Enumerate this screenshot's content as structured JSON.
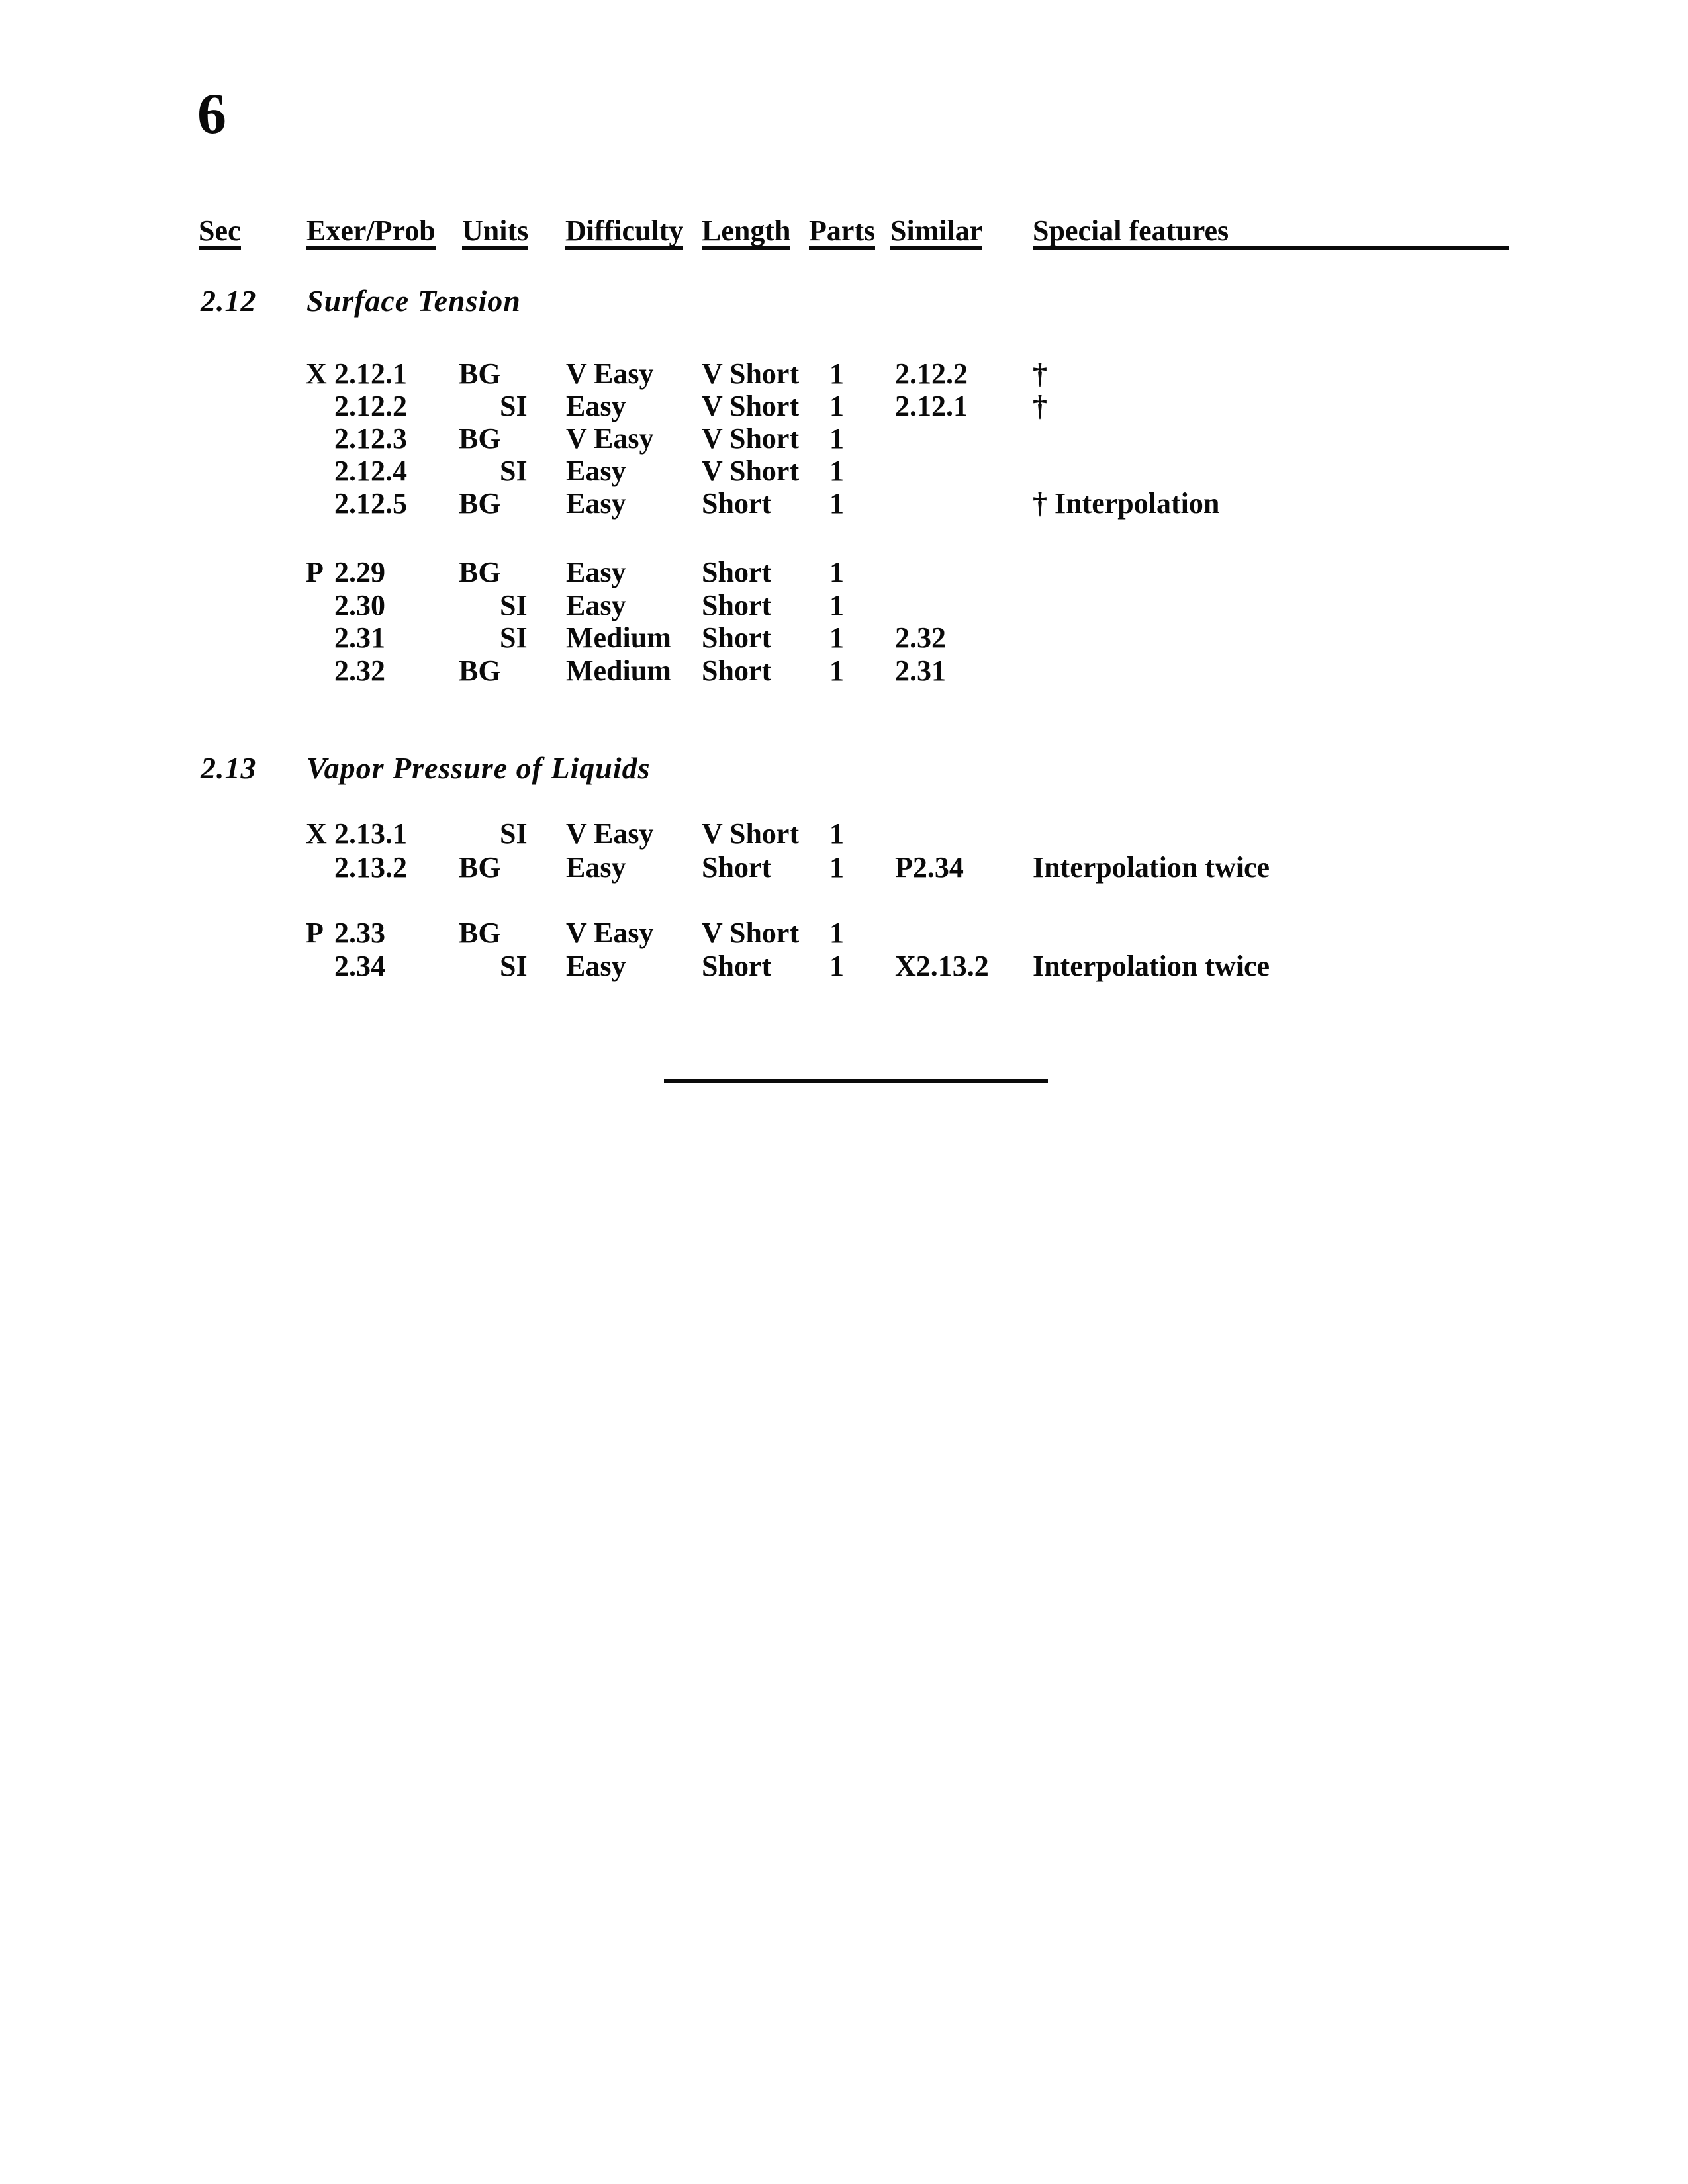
{
  "page": {
    "number": "6"
  },
  "table": {
    "columns": [
      {
        "key": "sec",
        "label": "Sec"
      },
      {
        "key": "exer",
        "label": "Exer/Prob"
      },
      {
        "key": "units",
        "label": "Units"
      },
      {
        "key": "difficulty",
        "label": "Difficulty"
      },
      {
        "key": "length",
        "label": "Length"
      },
      {
        "key": "parts",
        "label": "Parts"
      },
      {
        "key": "similar",
        "label": "Similar"
      },
      {
        "key": "special",
        "label": "Special features"
      }
    ],
    "sections": [
      {
        "id": "2.12",
        "title": "Surface Tension",
        "groups": [
          {
            "rows": [
              {
                "prefix": "X",
                "exer": "2.12.1",
                "units": "BG",
                "difficulty": "V Easy",
                "length": "V Short",
                "parts": "1",
                "similar": "2.12.2",
                "special": "†"
              },
              {
                "prefix": "",
                "exer": "2.12.2",
                "units": "SI",
                "difficulty": "Easy",
                "length": "V Short",
                "parts": "1",
                "similar": "2.12.1",
                "special": "†"
              },
              {
                "prefix": "",
                "exer": "2.12.3",
                "units": "BG",
                "difficulty": "V Easy",
                "length": "V Short",
                "parts": "1",
                "similar": "",
                "special": ""
              },
              {
                "prefix": "",
                "exer": "2.12.4",
                "units": "SI",
                "difficulty": "Easy",
                "length": "V Short",
                "parts": "1",
                "similar": "",
                "special": ""
              },
              {
                "prefix": "",
                "exer": "2.12.5",
                "units": "BG",
                "difficulty": "Easy",
                "length": "Short",
                "parts": "1",
                "similar": "",
                "special": "† Interpolation"
              }
            ]
          },
          {
            "rows": [
              {
                "prefix": "P",
                "exer": "2.29",
                "units": "BG",
                "difficulty": "Easy",
                "length": "Short",
                "parts": "1",
                "similar": "",
                "special": ""
              },
              {
                "prefix": "",
                "exer": "2.30",
                "units": "SI",
                "difficulty": "Easy",
                "length": "Short",
                "parts": "1",
                "similar": "",
                "special": ""
              },
              {
                "prefix": "",
                "exer": "2.31",
                "units": "SI",
                "difficulty": "Medium",
                "length": "Short",
                "parts": "1",
                "similar": "2.32",
                "special": ""
              },
              {
                "prefix": "",
                "exer": "2.32",
                "units": "BG",
                "difficulty": "Medium",
                "length": "Short",
                "parts": "1",
                "similar": "2.31",
                "special": ""
              }
            ]
          }
        ]
      },
      {
        "id": "2.13",
        "title": "Vapor Pressure of Liquids",
        "groups": [
          {
            "rows": [
              {
                "prefix": "X",
                "exer": "2.13.1",
                "units": "SI",
                "difficulty": "V Easy",
                "length": "V Short",
                "parts": "1",
                "similar": "",
                "special": ""
              },
              {
                "prefix": "",
                "exer": "2.13.2",
                "units": "BG",
                "difficulty": "Easy",
                "length": "Short",
                "parts": "1",
                "similar": "P2.34",
                "special": "Interpolation twice"
              }
            ]
          },
          {
            "rows": [
              {
                "prefix": "P",
                "exer": "2.33",
                "units": "BG",
                "difficulty": "V Easy",
                "length": "V Short",
                "parts": "1",
                "similar": "",
                "special": ""
              },
              {
                "prefix": "",
                "exer": "2.34",
                "units": "SI",
                "difficulty": "Easy",
                "length": "Short",
                "parts": "1",
                "similar": "X2.13.2",
                "special": "Interpolation twice"
              }
            ]
          }
        ]
      }
    ]
  }
}
